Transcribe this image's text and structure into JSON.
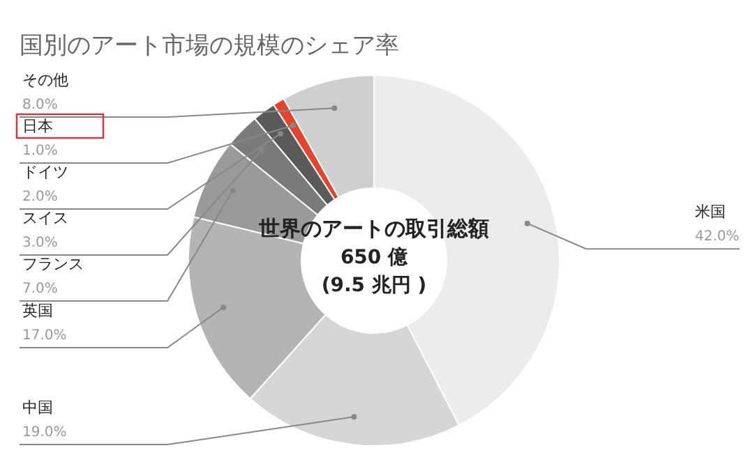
{
  "chart_data": {
    "type": "donut",
    "title": "国別のアート市場の規模のシェア率",
    "categories": [
      "米国",
      "中国",
      "英国",
      "フランス",
      "スイス",
      "ドイツ",
      "日本",
      "その他"
    ],
    "values": [
      42,
      19,
      17,
      7,
      3,
      2,
      1,
      8
    ],
    "value_labels": [
      "42.0%",
      "19.0%",
      "17.0%",
      "7.0%",
      "3.0%",
      "2.0%",
      "1.0%",
      "8.0%"
    ],
    "colors": [
      "#ececec",
      "#d6d6d6",
      "#b4b4b4",
      "#9a9a9a",
      "#7a7a7a",
      "#5a5a5a",
      "#e5432b",
      "#cfcfcf"
    ],
    "annotations": [
      "世界のアートの取引総額",
      "650 億",
      "(9.5 兆円 )"
    ]
  }
}
